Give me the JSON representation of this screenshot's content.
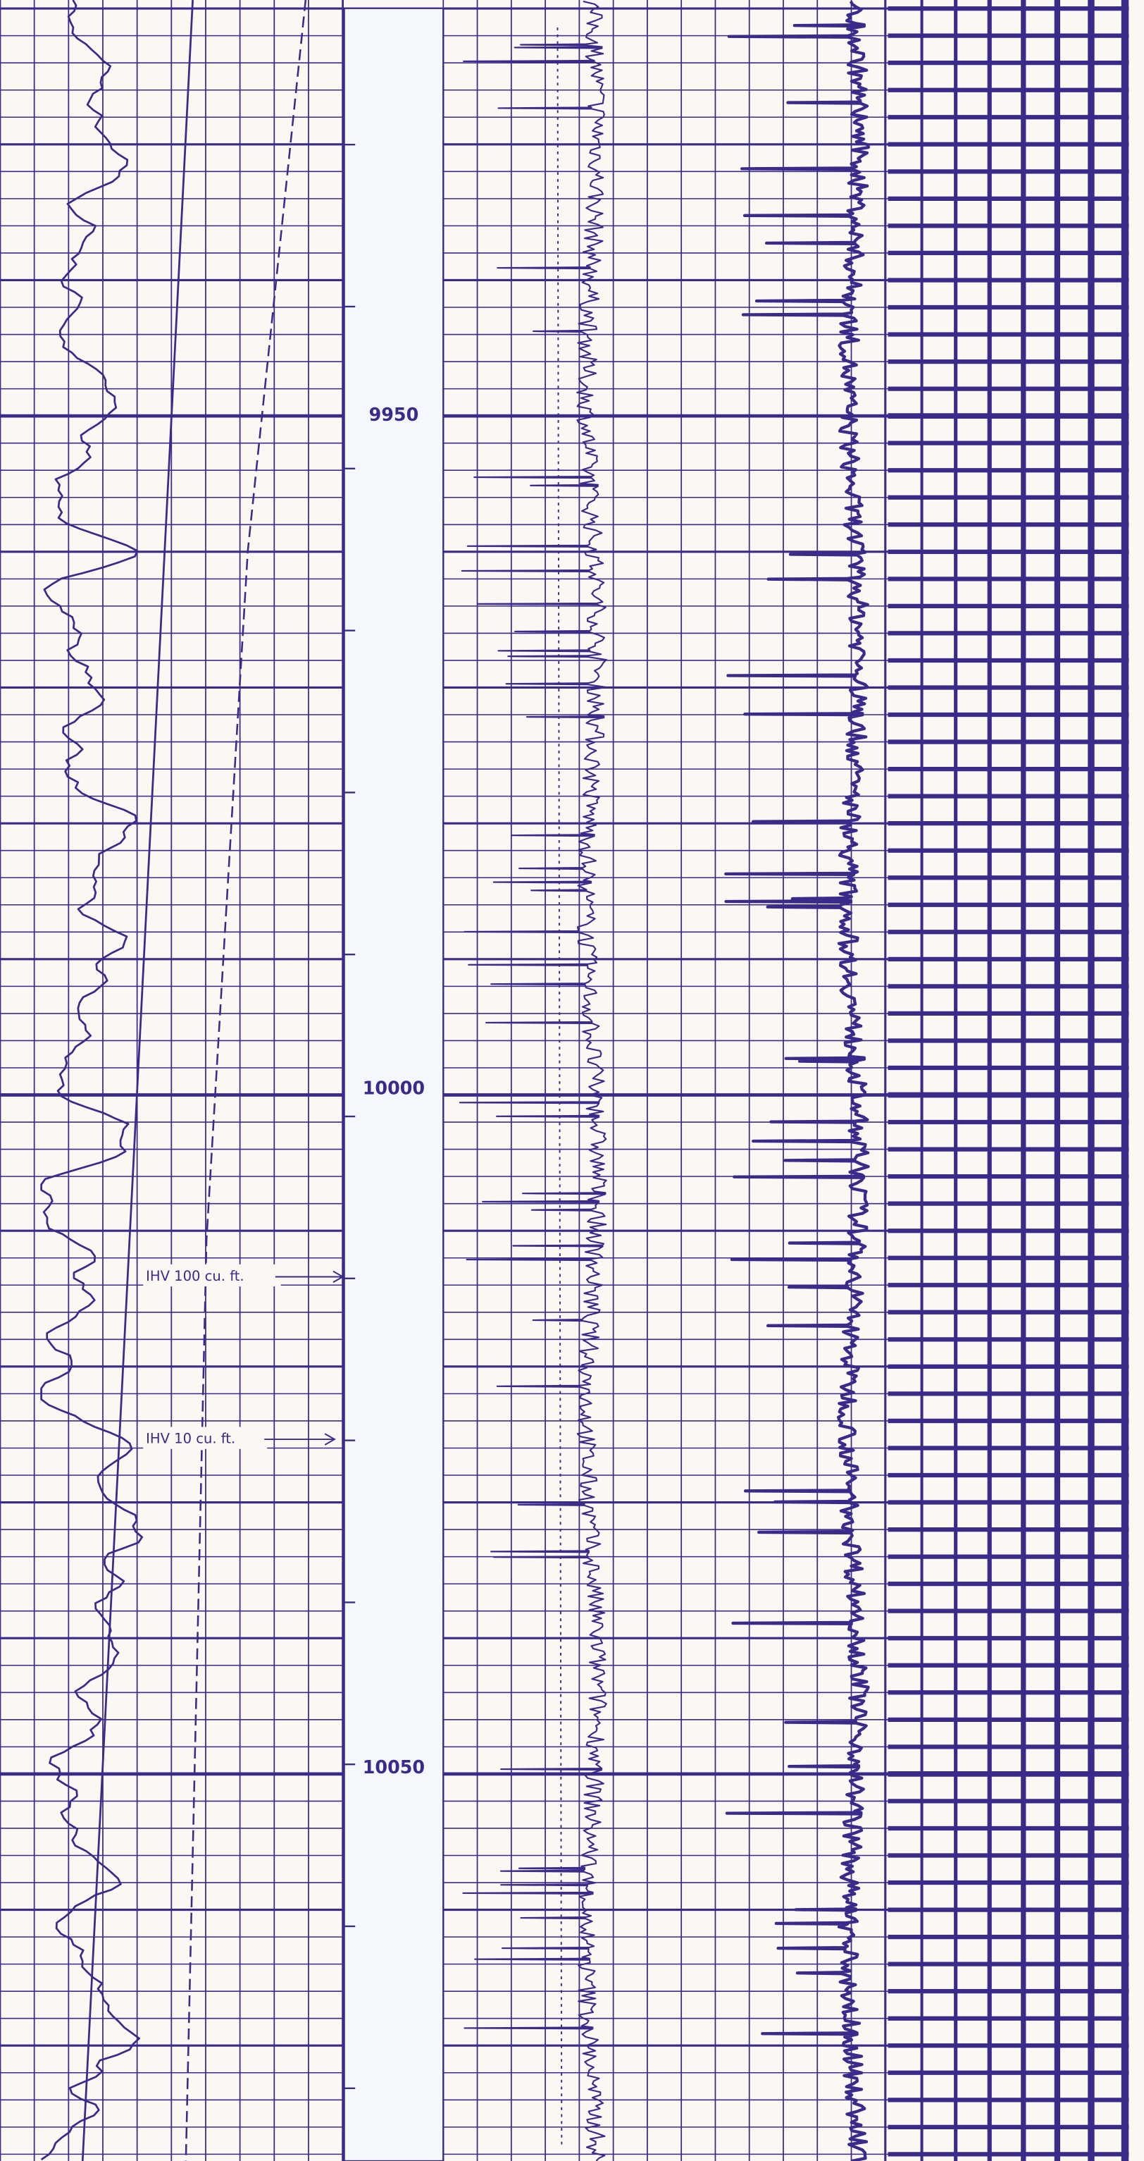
{
  "depth_labels": [
    "9950",
    "10000",
    "10050"
  ],
  "annotations": [
    "IHV 100 cu. ft.",
    "IHV 10 cu. ft."
  ]
}
